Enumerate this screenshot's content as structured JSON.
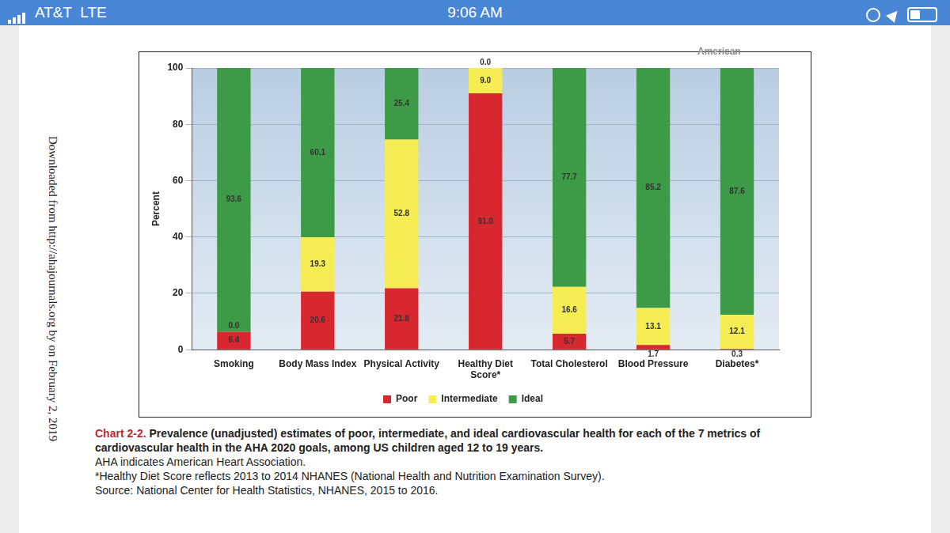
{
  "status_bar": {
    "carrier": "AT&T",
    "network": "LTE",
    "time": "9:06 AM"
  },
  "side_note": "Downloaded from http://ahajournals.org by on February 2, 2019",
  "logo_text": "American",
  "chart_data": {
    "type": "bar",
    "stacked": true,
    "categories": [
      "Smoking",
      "Body Mass Index",
      "Physical Activity",
      "Healthy Diet Score*",
      "Total Cholesterol",
      "Blood Pressure",
      "Diabetes*"
    ],
    "series": [
      {
        "name": "Poor",
        "color": "#d7282f",
        "values": [
          6.4,
          20.6,
          21.8,
          91.0,
          5.7,
          1.7,
          0.3
        ],
        "value_labels": [
          "6.4",
          "20.6",
          "21.8",
          "91.0",
          "5.7",
          "1.7",
          "0.3"
        ]
      },
      {
        "name": "Intermediate",
        "color": "#f6ec53",
        "values": [
          0.0,
          19.3,
          52.8,
          9.0,
          16.6,
          13.1,
          12.1
        ],
        "value_labels": [
          "0.0",
          "19.3",
          "52.8",
          "9.0",
          "16.6",
          "13.1",
          "12.1"
        ]
      },
      {
        "name": "Ideal",
        "color": "#3d9b48",
        "values": [
          93.6,
          60.1,
          25.4,
          0.0,
          77.7,
          85.2,
          87.6
        ],
        "value_labels": [
          "93.6",
          "60.1",
          "25.4",
          "0.0",
          "77.7",
          "85.2",
          "87.6"
        ]
      }
    ],
    "ylabel": "Percent",
    "ylim": [
      0,
      100
    ],
    "yticks": [
      0,
      20,
      40,
      60,
      80,
      100
    ],
    "grid": true,
    "legend": "bottom",
    "data_labels": true
  },
  "caption": {
    "label": "Chart 2-2.",
    "title": "Prevalence (unadjusted) estimates of poor, intermediate, and ideal cardiovascular health for each of the 7 metrics of cardiovascular health in the AHA 2020 goals, among US children aged 12 to 19 years.",
    "notes": [
      "AHA indicates American Heart Association.",
      "*Healthy Diet Score reflects 2013 to 2014 NHANES (National Health and Nutrition Examination Survey).",
      "Source: National Center for Health Statistics, NHANES, 2015 to 2016."
    ]
  }
}
